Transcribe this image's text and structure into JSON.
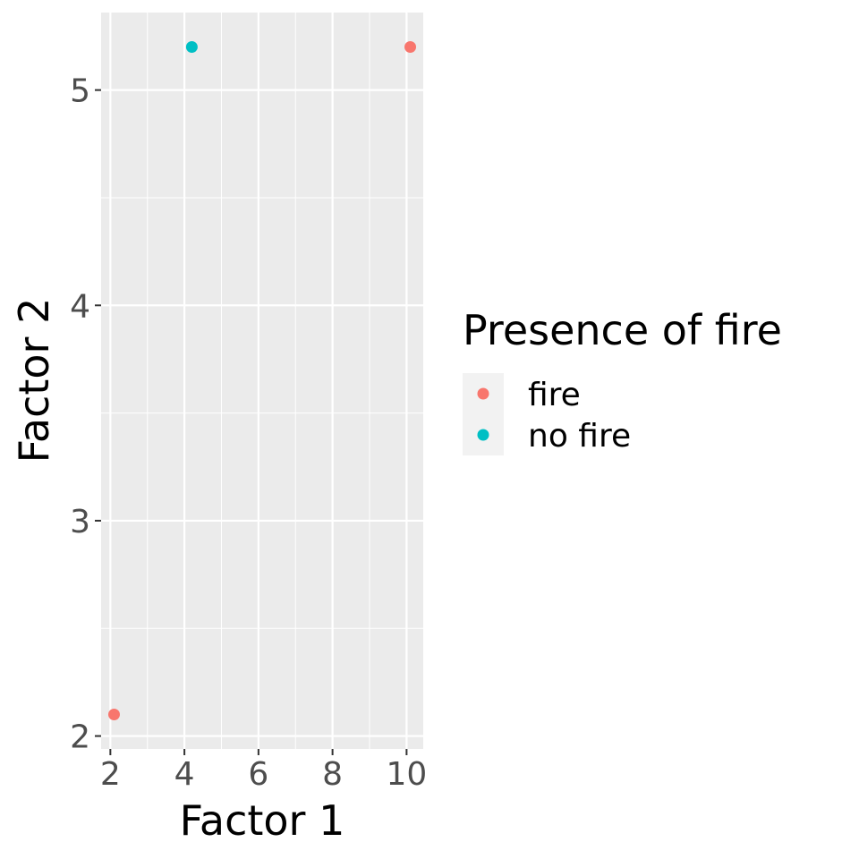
{
  "chart_data": {
    "type": "scatter",
    "title": "",
    "xlabel": "Factor 1",
    "ylabel": "Factor 2",
    "xlim": [
      1.75,
      10.45
    ],
    "ylim": [
      1.94,
      5.36
    ],
    "x_ticks": [
      2,
      4,
      6,
      8,
      10
    ],
    "x_tick_labels": [
      "2",
      "4",
      "6",
      "8",
      "10"
    ],
    "y_ticks": [
      2,
      3,
      4,
      5
    ],
    "y_tick_labels": [
      "2",
      "3",
      "4",
      "5"
    ],
    "grid": true,
    "legend_title": "Presence of fire",
    "legend_position": "right",
    "series": [
      {
        "name": "fire",
        "color": "#F8766D",
        "points": [
          {
            "x": 2.1,
            "y": 2.1
          },
          {
            "x": 10.1,
            "y": 5.2
          }
        ]
      },
      {
        "name": "no fire",
        "color": "#00BFC4",
        "points": [
          {
            "x": 4.2,
            "y": 5.2
          }
        ]
      }
    ]
  }
}
